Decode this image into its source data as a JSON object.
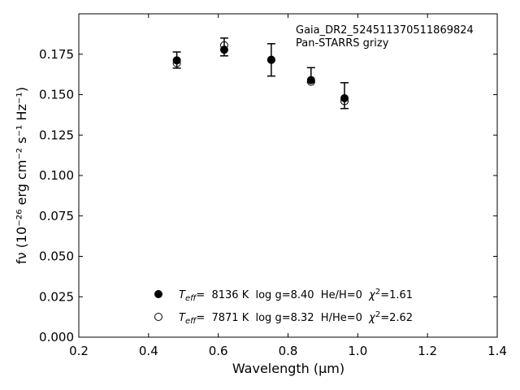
{
  "chart_data": {
    "type": "scatter",
    "xlabel": "Wavelength (μm)",
    "ylabel": "fν (10⁻²⁶ erg cm⁻² s⁻¹ Hz⁻¹)",
    "xlim": [
      0.2,
      1.4
    ],
    "ylim": [
      0.0,
      0.2
    ],
    "x_ticks": [
      0.2,
      0.4,
      0.6,
      0.8,
      1.0,
      1.2,
      1.4
    ],
    "x_tick_labels": [
      "0.2",
      "0.4",
      "0.6",
      "0.8",
      "1.0",
      "1.2",
      "1.4"
    ],
    "y_ticks": [
      0.0,
      0.025,
      0.05,
      0.075,
      0.1,
      0.125,
      0.15,
      0.175
    ],
    "y_tick_labels": [
      "0.000",
      "0.025",
      "0.050",
      "0.075",
      "0.100",
      "0.125",
      "0.150",
      "0.175"
    ],
    "grid": false,
    "annotation_lines": [
      "Gaia_DR2_524511370511869824",
      "Pan-STARRS grizy"
    ],
    "observed": {
      "x": [
        0.481,
        0.617,
        0.752,
        0.866,
        0.962
      ],
      "y": [
        0.1714,
        0.1795,
        0.1715,
        0.1622,
        0.1494
      ],
      "yerr": [
        0.005,
        0.0055,
        0.01,
        0.0045,
        0.008
      ]
    },
    "series": [
      {
        "marker": "filled",
        "label": {
          "teff_sym": "T",
          "teff_sub": "eff",
          "teff_rest": "=  8136 K  log g=8.40  He/H=0  ",
          "chi_sym": "χ",
          "chi_sup": "2",
          "chi_rest": "=1.61"
        },
        "x": [
          0.481,
          0.617,
          0.752,
          0.866,
          0.962
        ],
        "y": [
          0.1712,
          0.1778,
          0.1716,
          0.159,
          0.1478
        ]
      },
      {
        "marker": "open",
        "label": {
          "teff_sym": "T",
          "teff_sub": "eff",
          "teff_rest": "=  7871 K  log g=8.32  H/He=0  ",
          "chi_sym": "χ",
          "chi_sup": "2",
          "chi_rest": "=2.62"
        },
        "x": [
          0.481,
          0.617,
          0.752,
          0.866,
          0.962
        ],
        "y": [
          0.1695,
          0.1805,
          0.1715,
          0.158,
          0.146
        ]
      }
    ],
    "legend_position": "bottom-center",
    "colors": {
      "marker": "#000000",
      "axis": "#000000"
    }
  }
}
